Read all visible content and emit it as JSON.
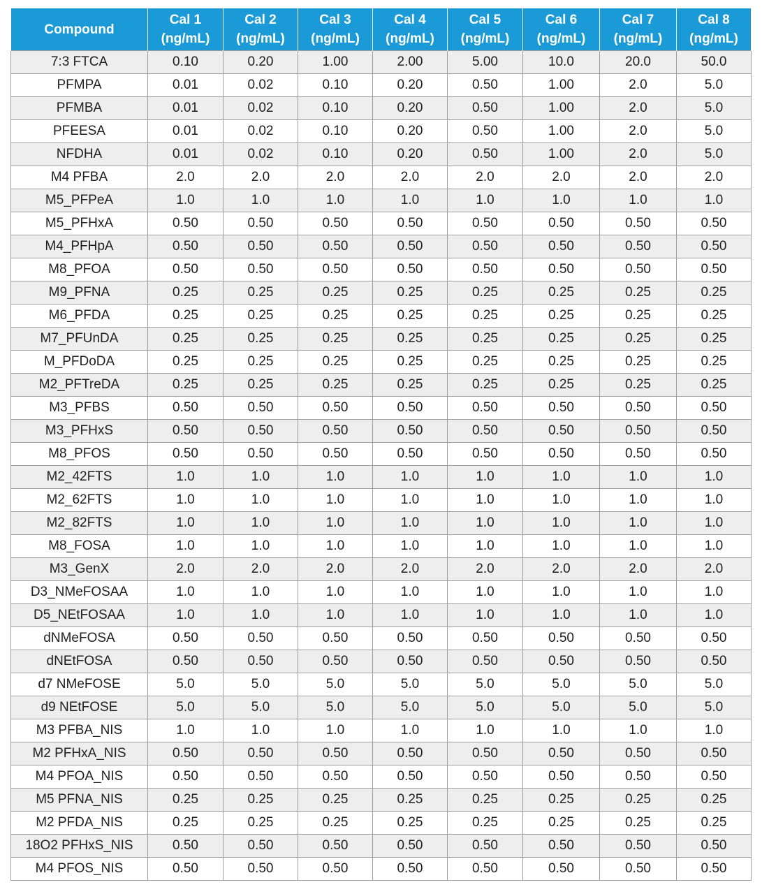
{
  "table": {
    "header": {
      "compound": "Compound",
      "cals": [
        {
          "name": "Cal 1",
          "unit": "(ng/mL)"
        },
        {
          "name": "Cal 2",
          "unit": "(ng/mL)"
        },
        {
          "name": "Cal 3",
          "unit": "(ng/mL)"
        },
        {
          "name": "Cal 4",
          "unit": "(ng/mL)"
        },
        {
          "name": "Cal 5",
          "unit": "(ng/mL)"
        },
        {
          "name": "Cal 6",
          "unit": "(ng/mL)"
        },
        {
          "name": "Cal 7",
          "unit": "(ng/mL)"
        },
        {
          "name": "Cal 8",
          "unit": "(ng/mL)"
        }
      ]
    },
    "colors": {
      "header_bg": "#1a9ad6",
      "header_text": "#ffffff",
      "row_alt_bg": "#eeeeee",
      "border": "#9e9e9e"
    },
    "rows": [
      {
        "compound": "7:3 FTCA",
        "values": [
          "0.10",
          "0.20",
          "1.00",
          "2.00",
          "5.00",
          "10.0",
          "20.0",
          "50.0"
        ]
      },
      {
        "compound": "PFMPA",
        "values": [
          "0.01",
          "0.02",
          "0.10",
          "0.20",
          "0.50",
          "1.00",
          "2.0",
          "5.0"
        ]
      },
      {
        "compound": "PFMBA",
        "values": [
          "0.01",
          "0.02",
          "0.10",
          "0.20",
          "0.50",
          "1.00",
          "2.0",
          "5.0"
        ]
      },
      {
        "compound": "PFEESA",
        "values": [
          "0.01",
          "0.02",
          "0.10",
          "0.20",
          "0.50",
          "1.00",
          "2.0",
          "5.0"
        ]
      },
      {
        "compound": "NFDHA",
        "values": [
          "0.01",
          "0.02",
          "0.10",
          "0.20",
          "0.50",
          "1.00",
          "2.0",
          "5.0"
        ]
      },
      {
        "compound": "M4 PFBA",
        "values": [
          "2.0",
          "2.0",
          "2.0",
          "2.0",
          "2.0",
          "2.0",
          "2.0",
          "2.0"
        ]
      },
      {
        "compound": "M5_PFPeA",
        "values": [
          "1.0",
          "1.0",
          "1.0",
          "1.0",
          "1.0",
          "1.0",
          "1.0",
          "1.0"
        ]
      },
      {
        "compound": "M5_PFHxA",
        "values": [
          "0.50",
          "0.50",
          "0.50",
          "0.50",
          "0.50",
          "0.50",
          "0.50",
          "0.50"
        ]
      },
      {
        "compound": "M4_PFHpA",
        "values": [
          "0.50",
          "0.50",
          "0.50",
          "0.50",
          "0.50",
          "0.50",
          "0.50",
          "0.50"
        ]
      },
      {
        "compound": "M8_PFOA",
        "values": [
          "0.50",
          "0.50",
          "0.50",
          "0.50",
          "0.50",
          "0.50",
          "0.50",
          "0.50"
        ]
      },
      {
        "compound": "M9_PFNA",
        "values": [
          "0.25",
          "0.25",
          "0.25",
          "0.25",
          "0.25",
          "0.25",
          "0.25",
          "0.25"
        ]
      },
      {
        "compound": "M6_PFDA",
        "values": [
          "0.25",
          "0.25",
          "0.25",
          "0.25",
          "0.25",
          "0.25",
          "0.25",
          "0.25"
        ]
      },
      {
        "compound": "M7_PFUnDA",
        "values": [
          "0.25",
          "0.25",
          "0.25",
          "0.25",
          "0.25",
          "0.25",
          "0.25",
          "0.25"
        ]
      },
      {
        "compound": "M_PFDoDA",
        "values": [
          "0.25",
          "0.25",
          "0.25",
          "0.25",
          "0.25",
          "0.25",
          "0.25",
          "0.25"
        ]
      },
      {
        "compound": "M2_PFTreDA",
        "values": [
          "0.25",
          "0.25",
          "0.25",
          "0.25",
          "0.25",
          "0.25",
          "0.25",
          "0.25"
        ]
      },
      {
        "compound": "M3_PFBS",
        "values": [
          "0.50",
          "0.50",
          "0.50",
          "0.50",
          "0.50",
          "0.50",
          "0.50",
          "0.50"
        ]
      },
      {
        "compound": "M3_PFHxS",
        "values": [
          "0.50",
          "0.50",
          "0.50",
          "0.50",
          "0.50",
          "0.50",
          "0.50",
          "0.50"
        ]
      },
      {
        "compound": "M8_PFOS",
        "values": [
          "0.50",
          "0.50",
          "0.50",
          "0.50",
          "0.50",
          "0.50",
          "0.50",
          "0.50"
        ]
      },
      {
        "compound": "M2_42FTS",
        "values": [
          "1.0",
          "1.0",
          "1.0",
          "1.0",
          "1.0",
          "1.0",
          "1.0",
          "1.0"
        ]
      },
      {
        "compound": "M2_62FTS",
        "values": [
          "1.0",
          "1.0",
          "1.0",
          "1.0",
          "1.0",
          "1.0",
          "1.0",
          "1.0"
        ]
      },
      {
        "compound": "M2_82FTS",
        "values": [
          "1.0",
          "1.0",
          "1.0",
          "1.0",
          "1.0",
          "1.0",
          "1.0",
          "1.0"
        ]
      },
      {
        "compound": "M8_FOSA",
        "values": [
          "1.0",
          "1.0",
          "1.0",
          "1.0",
          "1.0",
          "1.0",
          "1.0",
          "1.0"
        ]
      },
      {
        "compound": "M3_GenX",
        "values": [
          "2.0",
          "2.0",
          "2.0",
          "2.0",
          "2.0",
          "2.0",
          "2.0",
          "2.0"
        ]
      },
      {
        "compound": "D3_NMeFOSAA",
        "values": [
          "1.0",
          "1.0",
          "1.0",
          "1.0",
          "1.0",
          "1.0",
          "1.0",
          "1.0"
        ]
      },
      {
        "compound": "D5_NEtFOSAA",
        "values": [
          "1.0",
          "1.0",
          "1.0",
          "1.0",
          "1.0",
          "1.0",
          "1.0",
          "1.0"
        ]
      },
      {
        "compound": "dNMeFOSA",
        "values": [
          "0.50",
          "0.50",
          "0.50",
          "0.50",
          "0.50",
          "0.50",
          "0.50",
          "0.50"
        ]
      },
      {
        "compound": "dNEtFOSA",
        "values": [
          "0.50",
          "0.50",
          "0.50",
          "0.50",
          "0.50",
          "0.50",
          "0.50",
          "0.50"
        ]
      },
      {
        "compound": "d7 NMeFOSE",
        "values": [
          "5.0",
          "5.0",
          "5.0",
          "5.0",
          "5.0",
          "5.0",
          "5.0",
          "5.0"
        ]
      },
      {
        "compound": "d9 NEtFOSE",
        "values": [
          "5.0",
          "5.0",
          "5.0",
          "5.0",
          "5.0",
          "5.0",
          "5.0",
          "5.0"
        ]
      },
      {
        "compound": "M3 PFBA_NIS",
        "values": [
          "1.0",
          "1.0",
          "1.0",
          "1.0",
          "1.0",
          "1.0",
          "1.0",
          "1.0"
        ]
      },
      {
        "compound": "M2 PFHxA_NIS",
        "values": [
          "0.50",
          "0.50",
          "0.50",
          "0.50",
          "0.50",
          "0.50",
          "0.50",
          "0.50"
        ]
      },
      {
        "compound": "M4 PFOA_NIS",
        "values": [
          "0.50",
          "0.50",
          "0.50",
          "0.50",
          "0.50",
          "0.50",
          "0.50",
          "0.50"
        ]
      },
      {
        "compound": "M5 PFNA_NIS",
        "values": [
          "0.25",
          "0.25",
          "0.25",
          "0.25",
          "0.25",
          "0.25",
          "0.25",
          "0.25"
        ]
      },
      {
        "compound": "M2 PFDA_NIS",
        "values": [
          "0.25",
          "0.25",
          "0.25",
          "0.25",
          "0.25",
          "0.25",
          "0.25",
          "0.25"
        ]
      },
      {
        "compound": "18O2 PFHxS_NIS",
        "values": [
          "0.50",
          "0.50",
          "0.50",
          "0.50",
          "0.50",
          "0.50",
          "0.50",
          "0.50"
        ]
      },
      {
        "compound": "M4 PFOS_NIS",
        "values": [
          "0.50",
          "0.50",
          "0.50",
          "0.50",
          "0.50",
          "0.50",
          "0.50",
          "0.50"
        ]
      }
    ]
  }
}
